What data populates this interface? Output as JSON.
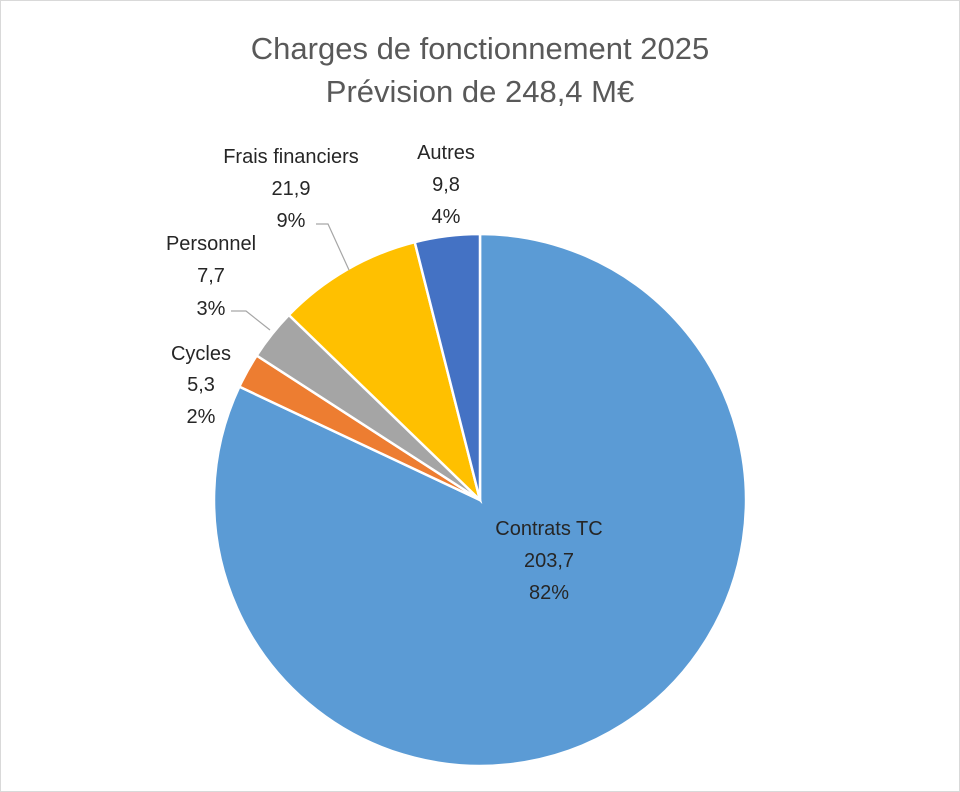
{
  "chart_data": {
    "type": "pie",
    "title": "Charges de fonctionnement  2025",
    "subtitle": "Prévision de 248,4 M€",
    "legend": "none",
    "slices": [
      {
        "label": "Contrats TC",
        "value": 203.7,
        "value_text": "203,7",
        "percent_text": "82%",
        "color": "#5B9BD5"
      },
      {
        "label": "Cycles",
        "value": 5.3,
        "value_text": "5,3",
        "percent_text": "2%",
        "color": "#ED7D31"
      },
      {
        "label": "Personnel",
        "value": 7.7,
        "value_text": "7,7",
        "percent_text": "3%",
        "color": "#A5A5A5"
      },
      {
        "label": "Frais financiers",
        "value": 21.9,
        "value_text": "21,9",
        "percent_text": "9%",
        "color": "#FFC000"
      },
      {
        "label": "Autres",
        "value": 9.8,
        "value_text": "9,8",
        "percent_text": "4%",
        "color": "#4472C4"
      }
    ]
  }
}
